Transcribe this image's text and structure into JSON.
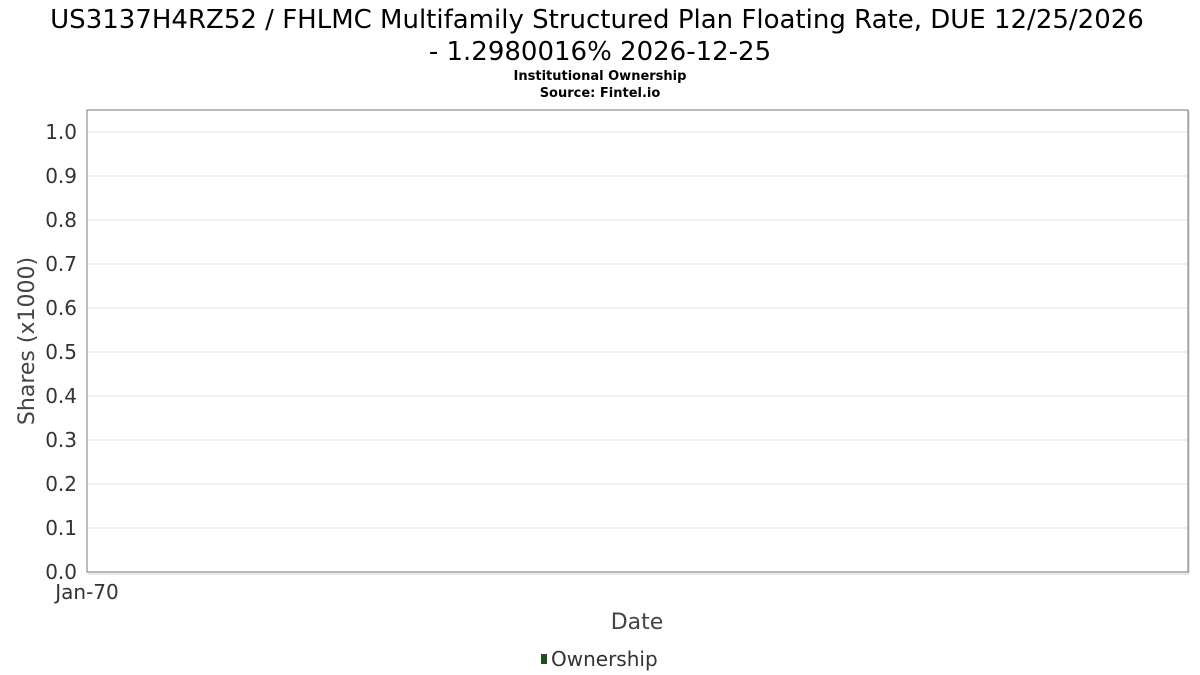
{
  "chart_data": {
    "type": "line",
    "title_lines": [
      "US3137H4RZ52 / FHLMC Multifamily Structured Plan Floating Rate, DUE 12/25/2026",
      "- 1.2980016% 2026-12-25"
    ],
    "subtitle_lines": [
      "Institutional Ownership",
      "Source: Fintel.io"
    ],
    "xlabel": "Date",
    "ylabel": "Shares (x1000)",
    "x_ticks": [
      "Jan-70"
    ],
    "y_ticks": [
      "0.0",
      "0.1",
      "0.2",
      "0.3",
      "0.4",
      "0.5",
      "0.6",
      "0.7",
      "0.8",
      "0.9",
      "1.0"
    ],
    "ylim": [
      0,
      1.0
    ],
    "grid": true,
    "legend_position": "bottom",
    "series": [
      {
        "name": "Ownership",
        "color": "#1f4e23",
        "values": []
      }
    ]
  }
}
